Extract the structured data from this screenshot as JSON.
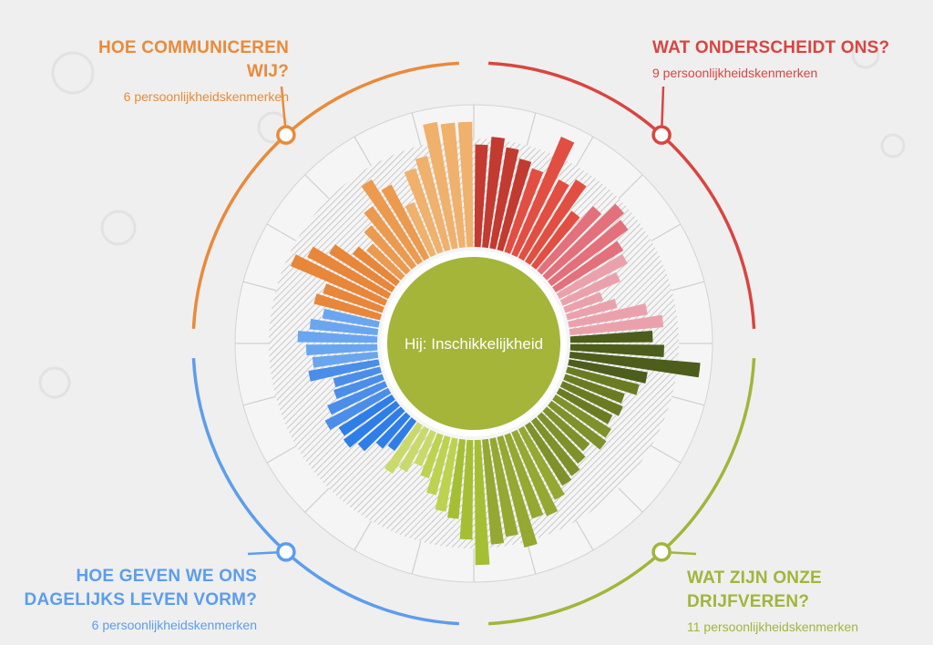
{
  "colors": {
    "background": "#efefef",
    "center": "#a4b53a",
    "orange": "#e98a3a",
    "red": "#d9453f",
    "blue": "#5c9ded",
    "green": "#a2b53b",
    "grid": "#c8c8c8"
  },
  "quadrants": [
    {
      "id": "tl",
      "title": "HOE COMMUNICEREN WIJ?",
      "subtitle": "6 persoonlijkheidskenmerken",
      "color": "#e98a3a"
    },
    {
      "id": "tr",
      "title": "WAT ONDERSCHEIDT ONS?",
      "subtitle": "9 persoonlijkheidskenmerken",
      "color": "#d9453f"
    },
    {
      "id": "bl",
      "title": "HOE GEVEN WE ONS DAGELIJKS LEVEN VORM?",
      "subtitle": "6 persoonlijkheidskenmerken",
      "color": "#5c9ded"
    },
    {
      "id": "br",
      "title": "WAT ZIJN ONZE DRIJFVEREN?",
      "subtitle": "11 persoonlijkheidskenmerken",
      "color": "#a2b53b"
    }
  ],
  "chart_data": {
    "type": "radial-bar",
    "center_label": "Hij: Inschikkelijkheid",
    "range": [
      0,
      1
    ],
    "groups": [
      {
        "name": "WAT ONDERSCHEIDT ONS?",
        "colors": [
          "#9e2e2a",
          "#e0604f",
          "#eaa0a8"
        ],
        "values": [
          0.72,
          0.78,
          0.72,
          0.66,
          0.62,
          0.9,
          0.62,
          0.68,
          0.48,
          0.6,
          0.72,
          0.67,
          0.56,
          0.54,
          0.44,
          0.28,
          0.36,
          0.56,
          0.66
        ]
      },
      {
        "name": "WAT ZIJN ONZE DRIJFVEREN?",
        "colors": [
          "#4f5e1c",
          "#8a9b2e"
        ],
        "values": [
          0.58,
          0.66,
          0.92,
          0.56,
          0.52,
          0.44,
          0.46,
          0.42,
          0.46,
          0.48,
          0.4,
          0.44,
          0.48,
          0.5,
          0.56,
          0.64,
          0.62,
          0.8,
          0.7,
          0.74
        ]
      },
      {
        "name": "HOE GEVEN WE ONS DAGELIJKS LEVEN VORM?",
        "colors": [
          "#c0d35a",
          "#a5c038",
          "#9bb936"
        ],
        "values": [
          0.88,
          0.7,
          0.56,
          0.52,
          0.42,
          0.32,
          0.26,
          0.34,
          0.4
        ],
        "blue_values": [
          0.26,
          0.3,
          0.4,
          0.46,
          0.44,
          0.5,
          0.44,
          0.36,
          0.34,
          0.5,
          0.46,
          0.5,
          0.56,
          0.48,
          0.4
        ]
      },
      {
        "name": "HOE COMMUNICEREN WIJ?",
        "colors": [
          "#e27a2a",
          "#f0b468"
        ],
        "values": [
          0.48,
          0.44,
          0.72,
          0.64,
          0.52,
          0.38,
          0.32,
          0.42,
          0.52,
          0.68,
          0.58,
          0.4,
          0.62,
          0.68,
          0.9,
          0.88,
          0.88
        ]
      }
    ]
  }
}
